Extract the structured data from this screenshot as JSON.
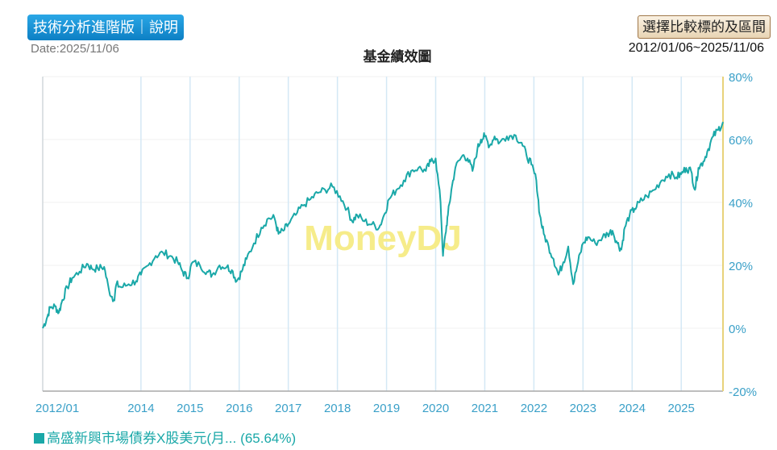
{
  "header": {
    "tech_button_label": "技術分析進階版｜說明",
    "date_label": "Date:2025/11/06",
    "compare_button_label": "選擇比較標的及區間",
    "range_label": "2012/01/06~2025/11/06"
  },
  "watermark": "MoneyDJ",
  "legend": {
    "series_name": "高盛新興市場債券X股美元(月...",
    "series_return": "(65.64%)"
  },
  "colors": {
    "line": "#1aa8a8",
    "axis_text": "#3aa0c8",
    "right_axis": "#e8d27a",
    "grid_vertical": "#d4e8f5",
    "grid_horizontal": "#f1f1f1",
    "watermark": "#f6ec8a"
  },
  "chart_data": {
    "type": "line",
    "title": "基金績效圖",
    "xlabel": "",
    "ylabel": "",
    "ylim": [
      -20,
      80
    ],
    "xlim": [
      2012.0,
      2025.85
    ],
    "y_ticks": [
      80,
      60,
      40,
      20,
      0,
      -20
    ],
    "y_tick_labels": [
      "80%",
      "60%",
      "40%",
      "20%",
      "0%",
      "-20%"
    ],
    "x_ticks": [
      2012.0,
      2014.0,
      2015.0,
      2016.0,
      2017.0,
      2018.0,
      2019.0,
      2020.0,
      2021.0,
      2022.0,
      2023.0,
      2024.0,
      2025.0
    ],
    "x_tick_labels": [
      "2012/01",
      "2014",
      "2015",
      "2016",
      "2017",
      "2018",
      "2019",
      "2020",
      "2021",
      "2022",
      "2023",
      "2024",
      "2025"
    ],
    "series": [
      {
        "name": "高盛新興市場債券X股美元(月...",
        "x": [
          2012.0,
          2012.08,
          2012.15,
          2012.25,
          2012.33,
          2012.4,
          2012.5,
          2012.6,
          2012.75,
          2012.9,
          2013.0,
          2013.12,
          2013.25,
          2013.35,
          2013.45,
          2013.5,
          2013.6,
          2013.75,
          2013.9,
          2014.0,
          2014.15,
          2014.3,
          2014.45,
          2014.6,
          2014.75,
          2014.85,
          2014.95,
          2015.05,
          2015.2,
          2015.35,
          2015.45,
          2015.6,
          2015.75,
          2015.85,
          2015.95,
          2016.05,
          2016.15,
          2016.3,
          2016.45,
          2016.6,
          2016.72,
          2016.8,
          2016.9,
          2017.0,
          2017.15,
          2017.3,
          2017.45,
          2017.6,
          2017.75,
          2017.9,
          2018.05,
          2018.2,
          2018.3,
          2018.4,
          2018.55,
          2018.7,
          2018.85,
          2018.95,
          2019.05,
          2019.2,
          2019.35,
          2019.5,
          2019.65,
          2019.8,
          2019.9,
          2020.0,
          2020.1,
          2020.15,
          2020.2,
          2020.25,
          2020.32,
          2020.4,
          2020.55,
          2020.65,
          2020.75,
          2020.85,
          2020.92,
          2021.0,
          2021.1,
          2021.2,
          2021.3,
          2021.45,
          2021.6,
          2021.75,
          2021.85,
          2021.95,
          2022.05,
          2022.12,
          2022.2,
          2022.3,
          2022.4,
          2022.5,
          2022.6,
          2022.7,
          2022.8,
          2022.9,
          2023.0,
          2023.1,
          2023.25,
          2023.4,
          2023.5,
          2023.6,
          2023.7,
          2023.78,
          2023.85,
          2023.95,
          2024.05,
          2024.15,
          2024.3,
          2024.45,
          2024.6,
          2024.75,
          2024.9,
          2025.0,
          2025.1,
          2025.2,
          2025.28,
          2025.35,
          2025.45,
          2025.55,
          2025.65,
          2025.75,
          2025.85
        ],
        "values": [
          0.0,
          3.0,
          6.5,
          7.0,
          5.0,
          9.0,
          13.0,
          16.0,
          18.0,
          20.5,
          19.0,
          19.0,
          19.5,
          12.0,
          9.0,
          14.0,
          13.0,
          14.0,
          15.0,
          17.0,
          20.0,
          23.0,
          24.0,
          23.0,
          21.0,
          18.0,
          16.0,
          21.0,
          20.0,
          18.0,
          17.0,
          20.0,
          19.5,
          18.5,
          15.0,
          18.0,
          22.0,
          27.0,
          32.0,
          35.0,
          35.0,
          30.0,
          31.0,
          33.0,
          36.0,
          39.0,
          41.0,
          43.0,
          44.0,
          45.0,
          42.0,
          38.0,
          34.0,
          36.0,
          34.0,
          33.0,
          32.0,
          36.0,
          41.0,
          44.0,
          47.0,
          50.0,
          51.0,
          50.0,
          53.0,
          54.0,
          40.0,
          23.0,
          30.0,
          36.0,
          44.0,
          51.0,
          55.0,
          54.0,
          50.0,
          57.0,
          60.0,
          61.0,
          58.0,
          61.0,
          59.0,
          61.0,
          61.5,
          59.0,
          55.0,
          52.0,
          47.0,
          36.0,
          30.0,
          26.0,
          22.0,
          17.0,
          21.0,
          26.0,
          14.0,
          21.0,
          27.0,
          29.0,
          27.0,
          29.0,
          30.0,
          31.0,
          27.0,
          25.0,
          32.0,
          36.0,
          38.0,
          40.0,
          42.0,
          44.0,
          47.0,
          49.0,
          48.0,
          49.0,
          51.0,
          50.0,
          44.0,
          51.0,
          53.0,
          57.0,
          61.0,
          63.0,
          65.6
        ]
      }
    ]
  }
}
